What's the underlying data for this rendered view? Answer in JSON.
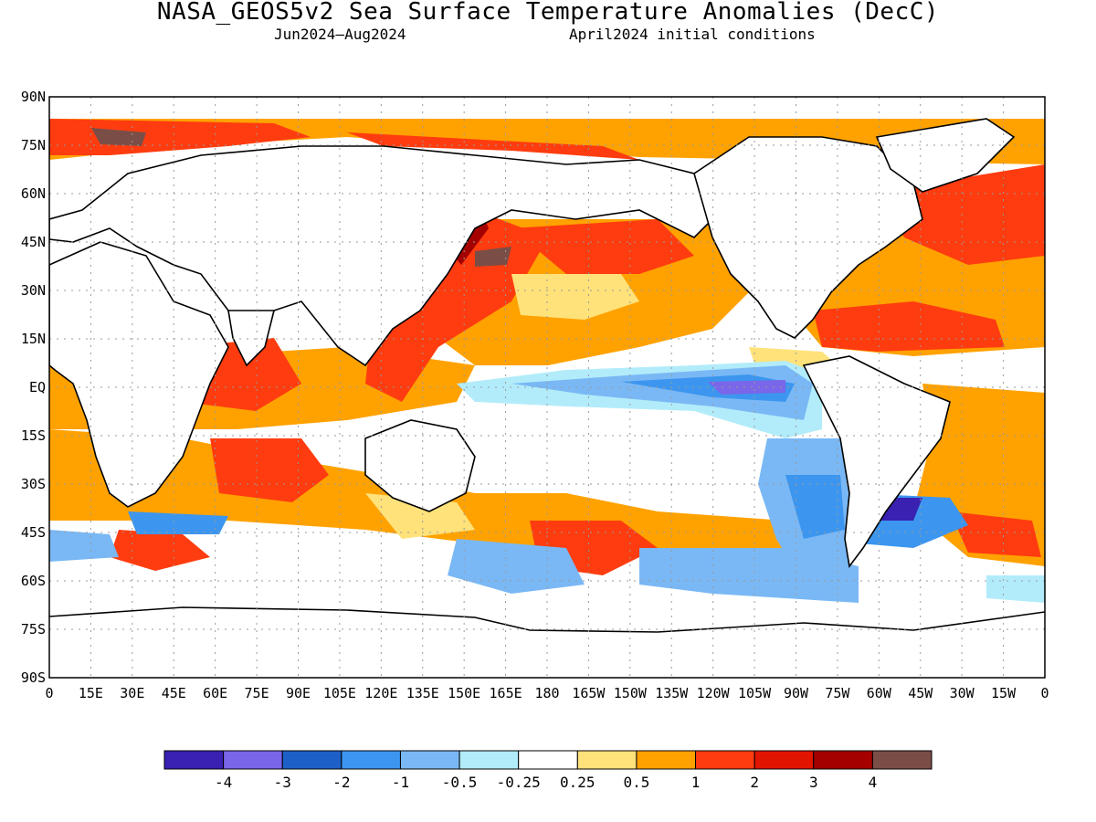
{
  "title": "NASA_GEOS5v2 Sea Surface Temperature Anomalies (DecC)",
  "subtitle_left": "Jun2024–Aug2024",
  "subtitle_right": "April2024 initial conditions",
  "lat_labels": [
    "90N",
    "75N",
    "60N",
    "45N",
    "30N",
    "15N",
    "EQ",
    "15S",
    "30S",
    "45S",
    "60S",
    "75S",
    "90S"
  ],
  "lon_labels": [
    "0",
    "15E",
    "30E",
    "45E",
    "60E",
    "75E",
    "90E",
    "105E",
    "120E",
    "135E",
    "150E",
    "165E",
    "180",
    "165W",
    "150W",
    "135W",
    "120W",
    "105W",
    "90W",
    "75W",
    "60W",
    "45W",
    "30W",
    "15W",
    "0"
  ],
  "colorbar": {
    "colors": [
      "#3a21b2",
      "#7a66e8",
      "#1e60c8",
      "#3c96ef",
      "#7ab8f5",
      "#b2ecfa",
      "#ffffff",
      "#ffe27a",
      "#ffa200",
      "#ff3c0f",
      "#e11400",
      "#a50000",
      "#7a4e47"
    ],
    "labels": [
      "-4",
      "-3",
      "-2",
      "-1",
      "-0.5",
      "-0.25",
      "0.25",
      "0.5",
      "1",
      "2",
      "3",
      "4"
    ]
  },
  "icons": {
    "map": "world-map-icon"
  }
}
